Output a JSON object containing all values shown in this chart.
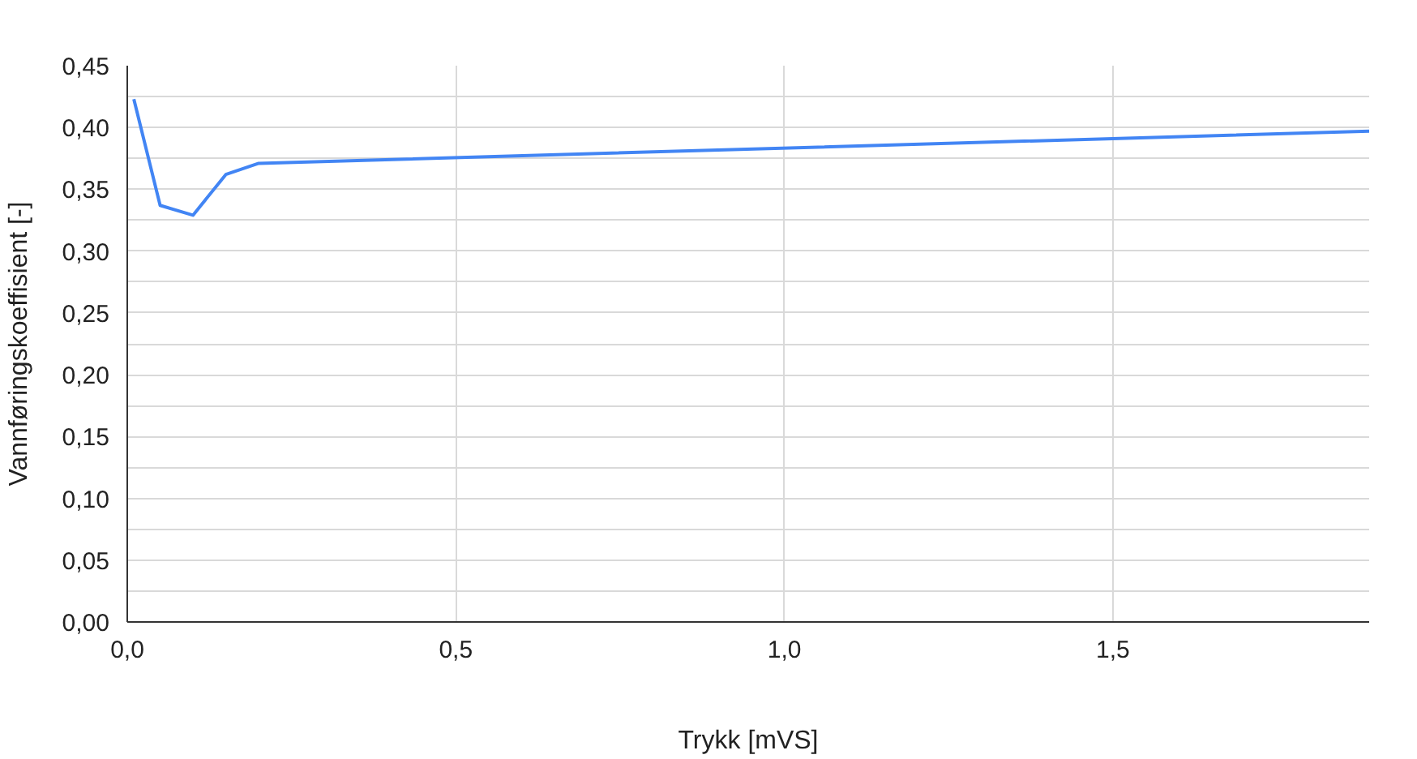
{
  "chart_data": {
    "type": "line",
    "xlabel": "Trykk [mVS]",
    "ylabel": "Vannføringskoeffisient [-]",
    "x": [
      0.01,
      0.05,
      0.1,
      0.15,
      0.2,
      1.89
    ],
    "series": [
      {
        "color": "#4285f4",
        "values": [
          0.423,
          0.337,
          0.329,
          0.362,
          0.371,
          0.397
        ]
      }
    ],
    "xlim": [
      0,
      1.89
    ],
    "ylim": [
      0,
      0.45
    ],
    "xticks": [
      {
        "value": 0,
        "label": "0,0"
      },
      {
        "value": 0.5,
        "label": "0,5"
      },
      {
        "value": 1.0,
        "label": "1,0"
      },
      {
        "value": 1.5,
        "label": "1,5"
      }
    ],
    "yticks": [
      {
        "value": 0,
        "label": "0,00"
      },
      {
        "value": 0.025,
        "label": null
      },
      {
        "value": 0.05,
        "label": "0,05"
      },
      {
        "value": 0.075,
        "label": null
      },
      {
        "value": 0.1,
        "label": "0,10"
      },
      {
        "value": 0.125,
        "label": null
      },
      {
        "value": 0.15,
        "label": "0,15"
      },
      {
        "value": 0.175,
        "label": null
      },
      {
        "value": 0.2,
        "label": "0,20"
      },
      {
        "value": 0.225,
        "label": null
      },
      {
        "value": 0.25,
        "label": "0,25"
      },
      {
        "value": 0.275,
        "label": null
      },
      {
        "value": 0.3,
        "label": "0,30"
      },
      {
        "value": 0.325,
        "label": null
      },
      {
        "value": 0.35,
        "label": "0,35"
      },
      {
        "value": 0.375,
        "label": null
      },
      {
        "value": 0.4,
        "label": "0,40"
      },
      {
        "value": 0.425,
        "label": null
      },
      {
        "value": 0.45,
        "label": "0,45"
      }
    ],
    "grid": true,
    "marker": "none",
    "line_style": "solid"
  }
}
